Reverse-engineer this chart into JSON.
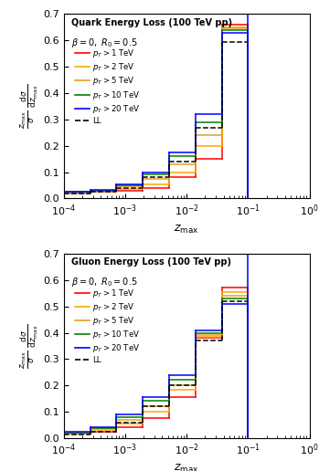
{
  "quark_title": "Quark Energy Loss (100 TeV pp)",
  "gluon_title": "Gluon Energy Loss (100 TeV pp)",
  "beta_label": "$\\beta = 0,\\ R_0 = 0.5$",
  "ylabel_top": "$\\dfrac{z_{\\mathrm{max}}}{\\sigma}$",
  "ylabel_bot": "$\\dfrac{\\mathrm{d}\\sigma}{\\mathrm{d}z_{\\mathrm{max}}}$",
  "xlabel": "$z_{\\mathrm{max}}$",
  "xlim": [
    0.0001,
    1.0
  ],
  "ylim": [
    0.0,
    0.7
  ],
  "yticks": [
    0.0,
    0.1,
    0.2,
    0.3,
    0.4,
    0.5,
    0.6,
    0.7
  ],
  "colors": [
    "red",
    "orange",
    "goldenrod",
    "green",
    "blue"
  ],
  "labels": [
    "$p_T > 1$ TeV",
    "$p_T > 2$ TeV",
    "$p_T > 5$ TeV",
    "$p_T > 10$ TeV",
    "$p_T > 20$ TeV"
  ],
  "ll_color": "black",
  "ll_label": "LL",
  "bin_edges_log": [
    -4.0,
    -3.5,
    -3.0,
    -2.5,
    -2.0,
    -1.5,
    -1.0,
    -0.5
  ],
  "zmax_cutoff": 0.1,
  "quark_data": {
    "pt1": [
      0.02,
      0.025,
      0.03,
      0.04,
      0.08,
      0.15,
      0.66
    ],
    "pt2": [
      0.02,
      0.025,
      0.035,
      0.055,
      0.1,
      0.2,
      0.65
    ],
    "pt5": [
      0.02,
      0.028,
      0.045,
      0.075,
      0.13,
      0.24,
      0.645
    ],
    "pt10": [
      0.025,
      0.03,
      0.05,
      0.09,
      0.16,
      0.29,
      0.638
    ],
    "pt20": [
      0.025,
      0.033,
      0.055,
      0.1,
      0.175,
      0.32,
      0.63
    ],
    "ll": [
      0.018,
      0.025,
      0.04,
      0.08,
      0.14,
      0.27,
      0.595
    ]
  },
  "gluon_data": {
    "pt1": [
      0.018,
      0.025,
      0.04,
      0.075,
      0.155,
      0.38,
      0.57
    ],
    "pt2": [
      0.018,
      0.028,
      0.055,
      0.1,
      0.185,
      0.385,
      0.555
    ],
    "pt5": [
      0.02,
      0.033,
      0.07,
      0.12,
      0.2,
      0.39,
      0.54
    ],
    "pt10": [
      0.022,
      0.038,
      0.08,
      0.14,
      0.22,
      0.4,
      0.53
    ],
    "pt20": [
      0.025,
      0.042,
      0.09,
      0.155,
      0.24,
      0.41,
      0.51
    ],
    "ll": [
      0.015,
      0.025,
      0.06,
      0.12,
      0.2,
      0.37,
      0.52
    ]
  }
}
